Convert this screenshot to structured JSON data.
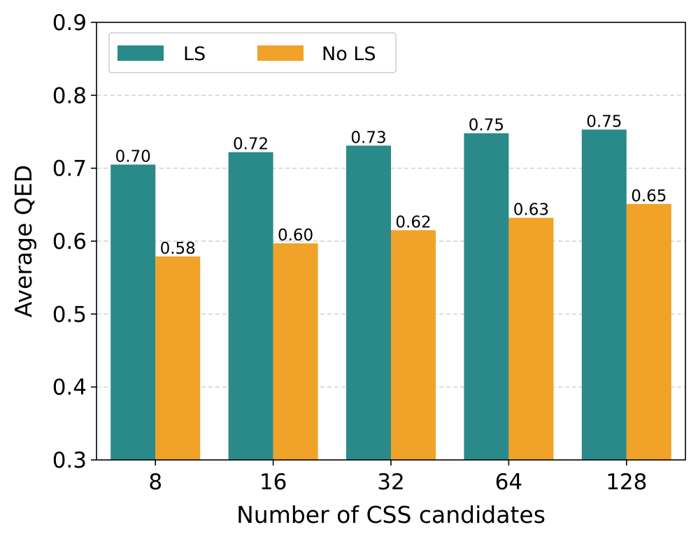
{
  "chart_data": {
    "type": "bar",
    "title": "",
    "xlabel": "Number of CSS candidates",
    "ylabel": "Average QED",
    "categories": [
      "8",
      "16",
      "32",
      "64",
      "128"
    ],
    "ylim": [
      0.3,
      0.9
    ],
    "yticks": [
      "0.3",
      "0.4",
      "0.5",
      "0.6",
      "0.7",
      "0.8",
      "0.9"
    ],
    "grid": "horizontal dashed",
    "legend_position": "top-left",
    "series": [
      {
        "name": "LS",
        "color": "#2a8a8a",
        "values": [
          0.705,
          0.722,
          0.731,
          0.748,
          0.753
        ],
        "labels": [
          "0.70",
          "0.72",
          "0.73",
          "0.75",
          "0.75"
        ]
      },
      {
        "name": "No LS",
        "color": "#f0a229",
        "values": [
          0.579,
          0.597,
          0.615,
          0.632,
          0.651
        ],
        "labels": [
          "0.58",
          "0.60",
          "0.62",
          "0.63",
          "0.65"
        ]
      }
    ]
  }
}
